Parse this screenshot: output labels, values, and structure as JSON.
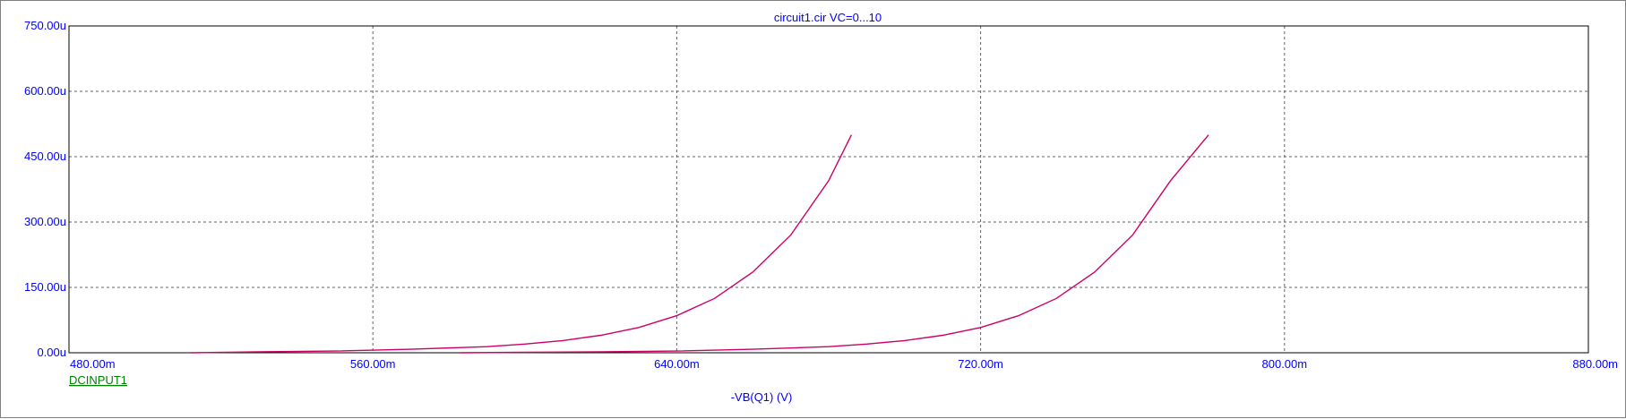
{
  "colors": {
    "axis_text": "#0000ff",
    "grid": "#606060",
    "plot_border": "#000000",
    "series": "#cc0066",
    "legend": "#008000"
  },
  "chart_data": {
    "type": "line",
    "title": "circuit1.cir VC=0...10",
    "xlabel": "-VB(Q1) (V)",
    "ylabel": "",
    "xlim": [
      480,
      880
    ],
    "ylim": [
      0,
      750
    ],
    "x_unit": "m",
    "y_unit": "u",
    "x_ticks": [
      "480.00m",
      "560.00m",
      "640.00m",
      "720.00m",
      "800.00m",
      "880.00m"
    ],
    "y_ticks": [
      "0.00u",
      "150.00u",
      "300.00u",
      "450.00u",
      "600.00u",
      "750.00u"
    ],
    "x_tick_values": [
      480,
      560,
      640,
      720,
      800,
      880
    ],
    "y_tick_values": [
      0,
      150,
      300,
      450,
      600,
      750
    ],
    "grid": true,
    "legend": "DCINPUT1",
    "series": [
      {
        "x": [
          512,
          530,
          550,
          570,
          590,
          600,
          610,
          620,
          630,
          640,
          650,
          660,
          670,
          680,
          686
        ],
        "y": [
          0,
          2,
          4,
          8,
          14,
          20,
          28,
          40,
          58,
          85,
          125,
          185,
          270,
          395,
          500
        ]
      },
      {
        "x": [
          583,
          600,
          620,
          640,
          660,
          680,
          690,
          700,
          710,
          720,
          730,
          740,
          750,
          760,
          770,
          780
        ],
        "y": [
          0,
          1,
          2,
          4,
          8,
          14,
          20,
          28,
          40,
          58,
          85,
          125,
          185,
          270,
          395,
          500
        ]
      }
    ]
  }
}
